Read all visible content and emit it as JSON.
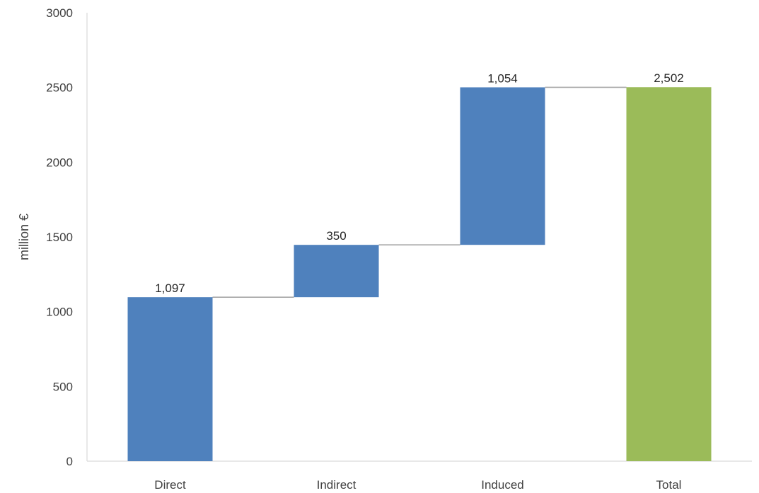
{
  "chart_data": {
    "type": "bar",
    "subtype": "waterfall",
    "categories": [
      "Direct",
      "Indirect",
      "Induced",
      "Total"
    ],
    "values": [
      1097,
      350,
      1054,
      2502
    ],
    "data_labels": [
      "1,097",
      "350",
      "1,054",
      "2,502"
    ],
    "total_index": 3,
    "ylabel": "million €",
    "ylim": [
      0,
      3000
    ],
    "yticks": [
      0,
      500,
      1000,
      1500,
      2000,
      2500,
      3000
    ],
    "ytick_labels": [
      "0",
      "500",
      "1000",
      "1500",
      "2000",
      "2500",
      "3000"
    ],
    "grid": false,
    "connector_lines": true,
    "colors": {
      "increase": "#4f81bd",
      "total": "#9bbb59",
      "connector": "#a6a6a6",
      "axis": "#d9d9d9"
    }
  }
}
